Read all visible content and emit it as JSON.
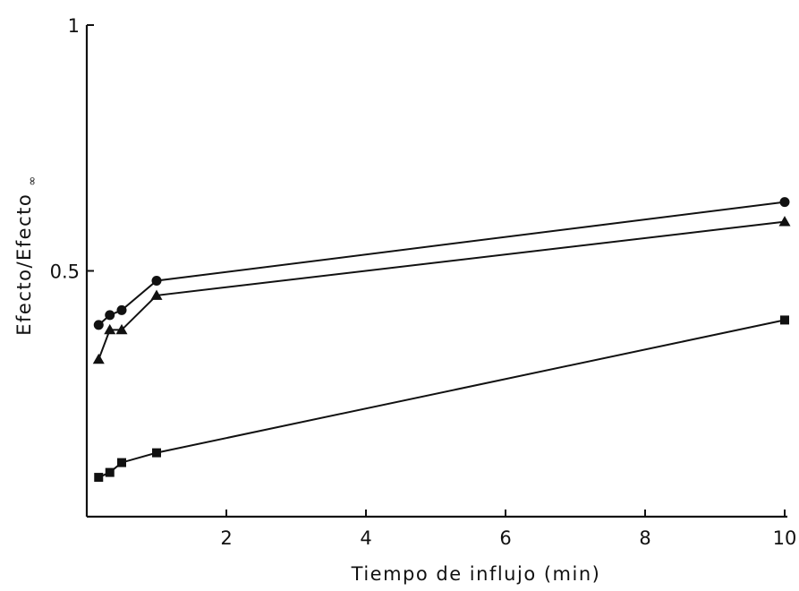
{
  "chart_data": {
    "type": "line",
    "title": "",
    "xlabel": "Tiempo de influjo (min)",
    "ylabel_main": "Efecto/Efecto",
    "ylabel_subscript": "∞",
    "xlim": [
      0,
      10
    ],
    "ylim": [
      0,
      1
    ],
    "x_ticks": [
      {
        "value": 2,
        "label": "2"
      },
      {
        "value": 4,
        "label": "4"
      },
      {
        "value": 6,
        "label": "6"
      },
      {
        "value": 8,
        "label": "8"
      },
      {
        "value": 10,
        "label": "10"
      }
    ],
    "y_ticks": [
      {
        "value": 0.5,
        "label": "0.5"
      },
      {
        "value": 1,
        "label": "1"
      }
    ],
    "grid": false,
    "series": [
      {
        "marker": "circle",
        "x": [
          0.17,
          0.33,
          0.5,
          1,
          10
        ],
        "y": [
          0.39,
          0.41,
          0.42,
          0.48,
          0.64
        ]
      },
      {
        "marker": "triangle",
        "x": [
          0.17,
          0.33,
          0.5,
          1,
          10
        ],
        "y": [
          0.32,
          0.38,
          0.38,
          0.45,
          0.6
        ]
      },
      {
        "marker": "square",
        "x": [
          0.17,
          0.33,
          0.5,
          1,
          10
        ],
        "y": [
          0.08,
          0.09,
          0.11,
          0.13,
          0.4
        ]
      }
    ],
    "colors": {
      "ink": "#111111",
      "background": "#ffffff"
    }
  }
}
